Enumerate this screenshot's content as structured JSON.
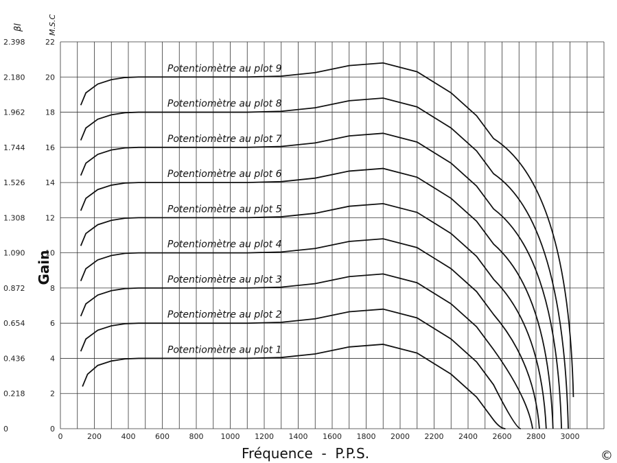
{
  "chart_data": {
    "type": "line",
    "xlabel": "Fréquence  -  P.P.S.",
    "ylabel": "Gain",
    "left_axis_unit": "βl",
    "msc_axis_unit": "M.S.C",
    "corner_mark": "©",
    "xlim": [
      0,
      3200
    ],
    "ylim": [
      0,
      22
    ],
    "x_ticks": [
      "0",
      "200",
      "400",
      "600",
      "800",
      "1000",
      "1200",
      "1400",
      "1600",
      "1800",
      "2000",
      "2200",
      "2400",
      "2600",
      "2800",
      "3000"
    ],
    "y_ticks_msc": [
      "0",
      "2",
      "4",
      "6",
      "8",
      "10",
      "12",
      "14",
      "16",
      "18",
      "20",
      "22"
    ],
    "y_ticks_bl": [
      "0",
      "0.218",
      "0.436",
      "0.654",
      "0.872",
      "1.090",
      "1.308",
      "1.526",
      "1.744",
      "1.962",
      "2.180",
      "2.398"
    ],
    "grid": true,
    "series": [
      {
        "name": "Potentiomètre au plot 1",
        "plateau": 4,
        "peak": 4.8,
        "start_x": 130,
        "end_x": 2620
      },
      {
        "name": "Potentiomètre au plot 2",
        "plateau": 6,
        "peak": 6.8,
        "start_x": 120,
        "end_x": 2710
      },
      {
        "name": "Potentiomètre au plot 3",
        "plateau": 8,
        "peak": 8.8,
        "start_x": 120,
        "end_x": 2780
      },
      {
        "name": "Potentiomètre au plot 4",
        "plateau": 10,
        "peak": 10.8,
        "start_x": 120,
        "end_x": 2820
      },
      {
        "name": "Potentiomètre au plot 5",
        "plateau": 12,
        "peak": 12.8,
        "start_x": 120,
        "end_x": 2860
      },
      {
        "name": "Potentiomètre au plot 6",
        "plateau": 14,
        "peak": 14.8,
        "start_x": 120,
        "end_x": 2900
      },
      {
        "name": "Potentiomètre au plot 7",
        "plateau": 16,
        "peak": 16.8,
        "start_x": 120,
        "end_x": 2950
      },
      {
        "name": "Potentiomètre au plot 8",
        "plateau": 18,
        "peak": 18.8,
        "start_x": 120,
        "end_x": 2990
      },
      {
        "name": "Potentiomètre au plot 9",
        "plateau": 20,
        "peak": 20.8,
        "start_x": 120,
        "end_x": 3020
      }
    ]
  }
}
